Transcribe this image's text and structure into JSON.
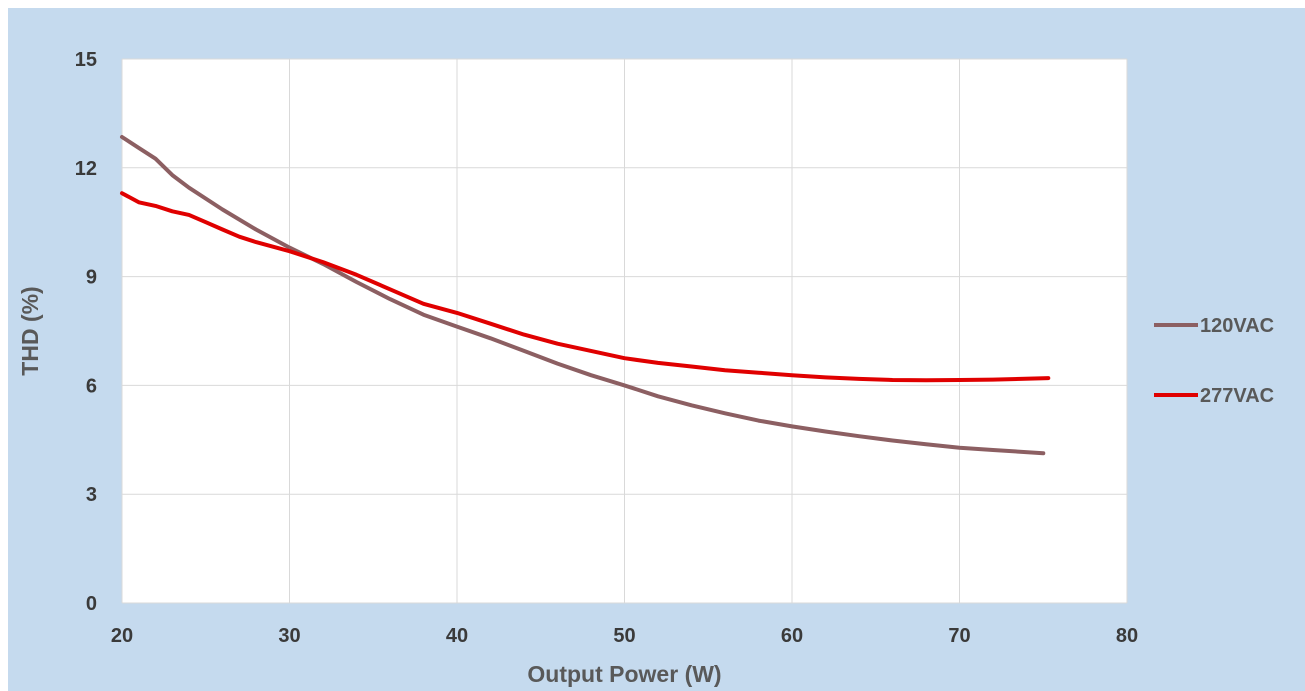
{
  "chart_data": {
    "type": "line",
    "title": "",
    "xlabel": "Output Power (W)",
    "ylabel": "THD (%)",
    "xlim": [
      20,
      80
    ],
    "ylim": [
      0,
      15
    ],
    "xticks": [
      20,
      30,
      40,
      50,
      60,
      70,
      80
    ],
    "yticks": [
      0,
      3,
      6,
      9,
      12,
      15
    ],
    "grid": true,
    "legend_position": "right",
    "series": [
      {
        "name": "120VAC",
        "color": "#8c5f62",
        "x": [
          20,
          21,
          22,
          23,
          24,
          26,
          28,
          30,
          32,
          34,
          36,
          38,
          40,
          42,
          44,
          46,
          48,
          50,
          52,
          54,
          56,
          58,
          60,
          62,
          64,
          66,
          68,
          70,
          72,
          75
        ],
        "y": [
          12.85,
          12.55,
          12.25,
          11.8,
          11.45,
          10.85,
          10.3,
          9.8,
          9.35,
          8.85,
          8.38,
          7.95,
          7.62,
          7.3,
          6.95,
          6.6,
          6.28,
          6.0,
          5.7,
          5.45,
          5.23,
          5.03,
          4.87,
          4.73,
          4.6,
          4.48,
          4.38,
          4.28,
          4.22,
          4.13
        ]
      },
      {
        "name": "277VAC",
        "color": "#e00000",
        "x": [
          20,
          21,
          22,
          23,
          24,
          25,
          26,
          27,
          28,
          30,
          32,
          34,
          36,
          38,
          40,
          42,
          44,
          46,
          48,
          50,
          52,
          54,
          56,
          58,
          60,
          62,
          64,
          66,
          68,
          70,
          72,
          75.3
        ],
        "y": [
          11.3,
          11.05,
          10.95,
          10.8,
          10.7,
          10.5,
          10.3,
          10.1,
          9.95,
          9.7,
          9.4,
          9.05,
          8.65,
          8.25,
          8.0,
          7.7,
          7.4,
          7.15,
          6.95,
          6.75,
          6.62,
          6.52,
          6.42,
          6.35,
          6.28,
          6.22,
          6.18,
          6.15,
          6.14,
          6.15,
          6.16,
          6.2
        ]
      }
    ]
  }
}
